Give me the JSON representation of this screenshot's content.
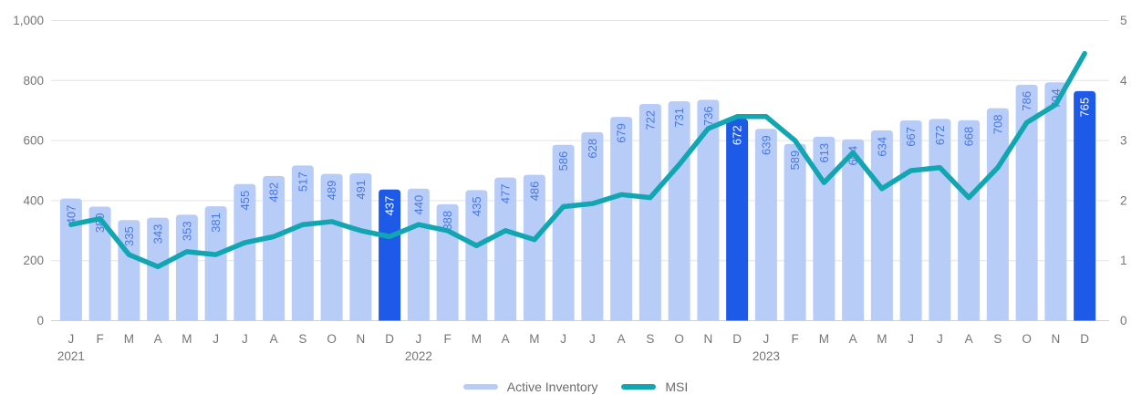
{
  "chart_data": {
    "type": "bar",
    "description": "Monthly Active Inventory bars with MSI line overlay, Jan 2021 - Dec 2023",
    "categories": [
      "J",
      "F",
      "M",
      "A",
      "M",
      "J",
      "J",
      "A",
      "S",
      "O",
      "N",
      "D",
      "J",
      "F",
      "M",
      "A",
      "M",
      "J",
      "J",
      "A",
      "S",
      "O",
      "N",
      "D",
      "J",
      "F",
      "M",
      "A",
      "M",
      "J",
      "J",
      "A",
      "S",
      "O",
      "N",
      "D"
    ],
    "year_labels": [
      {
        "label": "2021",
        "index": 0
      },
      {
        "label": "2022",
        "index": 12
      },
      {
        "label": "2023",
        "index": 24
      }
    ],
    "series": [
      {
        "name": "Active Inventory",
        "type": "bar",
        "axis": "left",
        "color": "#b8ccf8",
        "label_color": "#4678e4",
        "highlight_color": "#1e5ae8",
        "highlight_label_color": "#ffffff",
        "highlighted_indices": [
          11,
          23,
          35
        ],
        "values": [
          407,
          380,
          335,
          343,
          353,
          381,
          455,
          482,
          517,
          489,
          491,
          437,
          440,
          388,
          435,
          477,
          486,
          586,
          628,
          679,
          722,
          731,
          736,
          672,
          639,
          589,
          613,
          604,
          634,
          667,
          672,
          668,
          708,
          786,
          794,
          765
        ]
      },
      {
        "name": "MSI",
        "type": "line",
        "axis": "right",
        "color": "#12a6b2",
        "values": [
          1.6,
          1.7,
          1.1,
          0.9,
          1.15,
          1.1,
          1.3,
          1.4,
          1.6,
          1.65,
          1.5,
          1.4,
          1.6,
          1.5,
          1.25,
          1.5,
          1.35,
          1.9,
          1.95,
          2.1,
          2.05,
          2.6,
          3.2,
          3.4,
          3.4,
          3.0,
          2.3,
          2.8,
          2.2,
          2.5,
          2.55,
          2.05,
          2.55,
          3.3,
          3.6,
          4.45
        ]
      }
    ],
    "left_axis": {
      "min": 0,
      "max": 1000,
      "ticks": [
        0,
        200,
        400,
        600,
        800,
        1000
      ],
      "tick_labels": [
        "0",
        "200",
        "400",
        "600",
        "800",
        "1,000"
      ]
    },
    "right_axis": {
      "min": 0,
      "max": 5,
      "ticks": [
        0,
        1,
        2,
        3,
        4,
        5
      ],
      "tick_labels": [
        "0",
        "1",
        "2",
        "3",
        "4",
        "5"
      ]
    },
    "grid": "horizontal",
    "grid_color": "#e4e4e4",
    "baseline_color": "#d0d0d0",
    "axis_text_color": "#757575",
    "legend": {
      "position": "bottom-center",
      "items": [
        {
          "label": "Active Inventory",
          "color": "#b8ccf8"
        },
        {
          "label": "MSI",
          "color": "#12a6b2"
        }
      ]
    }
  }
}
